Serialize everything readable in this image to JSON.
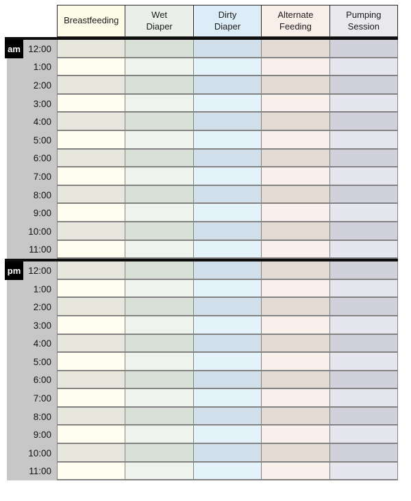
{
  "colors": {
    "page_bg": "#ffffff",
    "time_col_bg": "#c7c7c7",
    "grid_line": "#828282",
    "header_border": "#2a2a2a",
    "thick_bar": "#0d0d0d",
    "meridiem_bg": "#000000",
    "meridiem_text": "#ffffff",
    "header_text": "#1a1a1a",
    "time_text": "#111111"
  },
  "table": {
    "columns": [
      {
        "label": "Breastfeeding",
        "header_bg": "#fcfce9",
        "cell_light": "#fffef0",
        "cell_dark": "#e7e7de"
      },
      {
        "label": "Wet\nDiaper",
        "header_bg": "#eaf0e9",
        "cell_light": "#eff3ed",
        "cell_dark": "#d8e0d7"
      },
      {
        "label": "Dirty\nDiaper",
        "header_bg": "#ddedf7",
        "cell_light": "#e4f2fa",
        "cell_dark": "#d0dfe9"
      },
      {
        "label": "Alternate\nFeeding",
        "header_bg": "#faeee9",
        "cell_light": "#f9efeb",
        "cell_dark": "#e3dad4"
      },
      {
        "label": "Pumping\nSession",
        "header_bg": "#e9e9ee",
        "cell_light": "#e6e6ef",
        "cell_dark": "#d1d1db"
      }
    ],
    "sections": [
      {
        "meridiem": "am",
        "times": [
          "12:00",
          "1:00",
          "2:00",
          "3:00",
          "4:00",
          "5:00",
          "6:00",
          "7:00",
          "8:00",
          "9:00",
          "10:00",
          "11:00"
        ]
      },
      {
        "meridiem": "pm",
        "times": [
          "12:00",
          "1:00",
          "2:00",
          "3:00",
          "4:00",
          "5:00",
          "6:00",
          "7:00",
          "8:00",
          "9:00",
          "10:00",
          "11:00"
        ]
      }
    ]
  }
}
